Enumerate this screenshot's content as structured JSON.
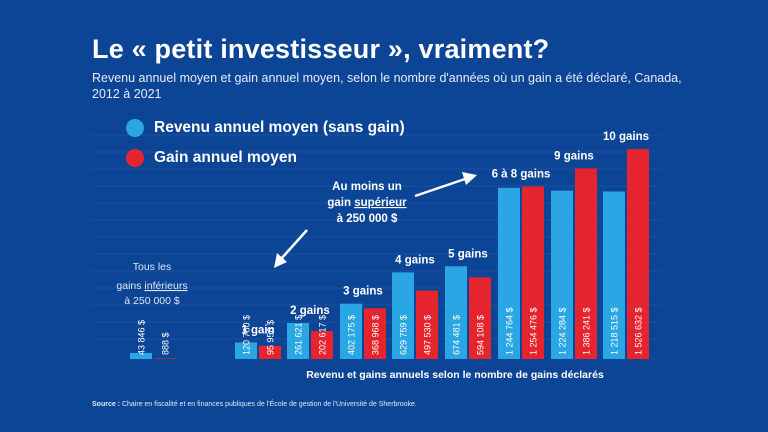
{
  "title": "Le « petit investisseur », vraiment?",
  "subtitle": "Revenu annuel moyen et gain annuel moyen, selon le nombre d'années où un gain a été déclaré, Canada, 2012 à 2021",
  "legend": [
    {
      "label": "Revenu annuel moyen (sans gain)",
      "color": "#29a6e3"
    },
    {
      "label": "Gain annuel moyen",
      "color": "#e5242d"
    }
  ],
  "annotations": {
    "low": {
      "lines": [
        "Tous les",
        "gains",
        "inférieurs",
        "à 250 000 $"
      ]
    },
    "high": {
      "lines": [
        "Au moins un",
        "gain",
        "supérieur",
        "à 250 000 $"
      ]
    }
  },
  "source": {
    "label": "Source :",
    "text": "Chaire en fiscalité et en finances publiques de l'École de gestion de l'Université de Sherbrooke."
  },
  "chart_data": {
    "type": "bar",
    "title": "Le « petit investisseur », vraiment?",
    "xlabel": "Revenu et gains annuels selon le nombre de gains déclarés",
    "ylabel": "",
    "ylim": [
      0,
      1600000
    ],
    "categories": [
      "",
      "1 gain",
      "2 gains",
      "3 gains",
      "4 gains",
      "5 gains",
      "6 à 8 gains",
      "9 gains",
      "10 gains"
    ],
    "series": [
      {
        "name": "Revenu annuel moyen (sans gain)",
        "color": "#29a6e3",
        "values": [
          43846,
          120780,
          261621,
          402175,
          629759,
          674481,
          1244764,
          1224284,
          1218515
        ],
        "labels": [
          "43 846 $",
          "120 780 $",
          "261 621 $",
          "402 175 $",
          "629 759 $",
          "674 481 $",
          "1 244 764 $",
          "1 224 284 $",
          "1 218 515 $"
        ]
      },
      {
        "name": "Gain annuel moyen",
        "color": "#e5242d",
        "values": [
          888,
          95956,
          202617,
          368968,
          497530,
          594108,
          1254476,
          1386241,
          1526632
        ],
        "labels": [
          "888 $",
          "95 956 $",
          "202 617 $",
          "368 968 $",
          "497 530 $",
          "594 108 $",
          "1 254 476 $",
          "1 386 241 $",
          "1 526 632 $"
        ]
      }
    ]
  }
}
